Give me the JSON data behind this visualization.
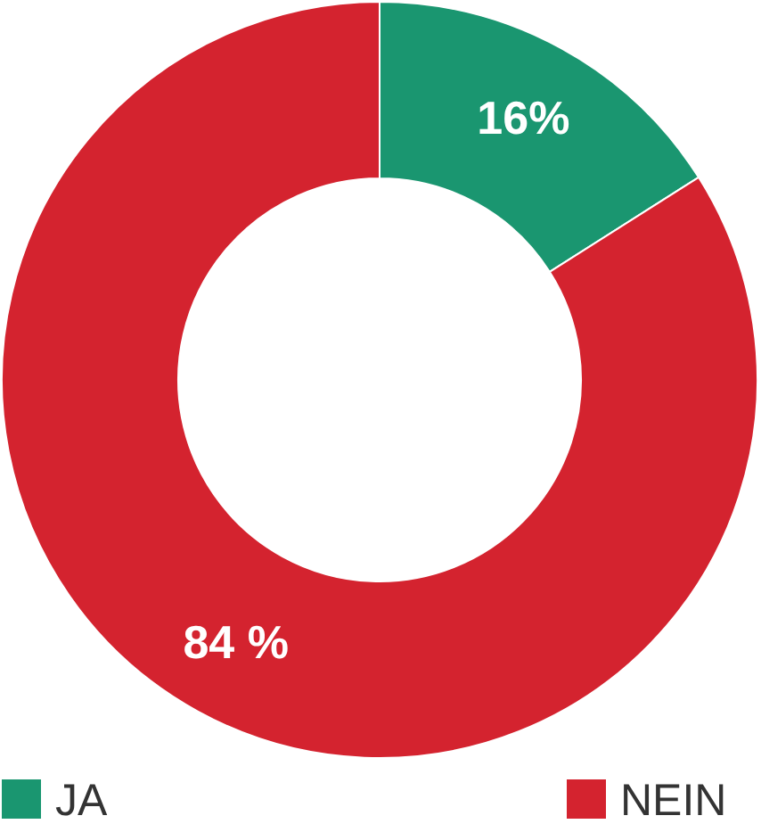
{
  "chart_data": {
    "type": "donut",
    "categories": [
      "JA",
      "NEIN"
    ],
    "values": [
      16,
      84
    ],
    "colors": [
      "#1a9670",
      "#d4232f"
    ],
    "value_labels": [
      "16%",
      "84 %"
    ],
    "legend": "bottom"
  }
}
